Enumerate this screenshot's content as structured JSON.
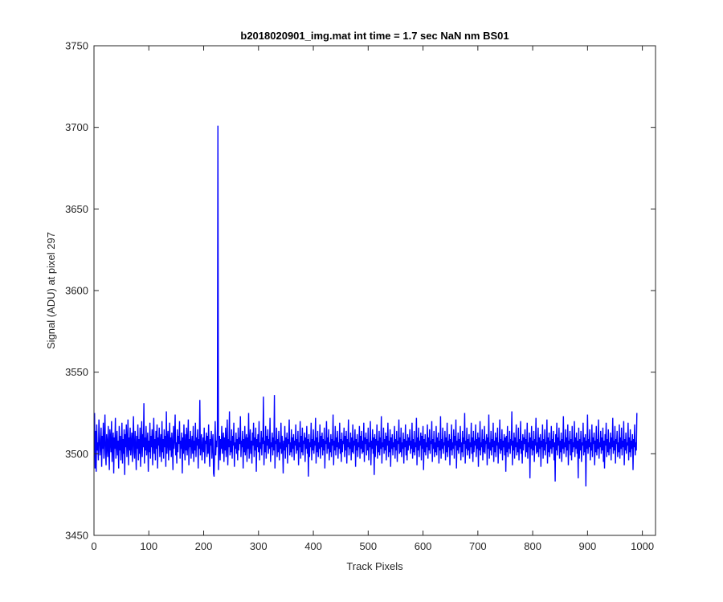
{
  "chart_data": {
    "type": "line",
    "title": "b2018020901_img.mat int time = 1.7 sec  NaN nm BS01",
    "xlabel": "Track Pixels",
    "ylabel": "Signal (ADU) at pixel 297",
    "xlim": [
      0,
      1024
    ],
    "ylim": [
      3450,
      3750
    ],
    "xticks": [
      0,
      100,
      200,
      300,
      400,
      500,
      600,
      700,
      800,
      900,
      1000
    ],
    "xtick_labels": [
      "0",
      "100",
      "200",
      "300",
      "400",
      "500",
      "600",
      "700",
      "800",
      "900",
      "1000"
    ],
    "yticks": [
      3450,
      3500,
      3550,
      3600,
      3650,
      3700,
      3750
    ],
    "ytick_labels": [
      "3450",
      "3500",
      "3550",
      "3600",
      "3650",
      "3700",
      "3750"
    ],
    "grid": false,
    "line_color": "#0000ff",
    "series": [
      {
        "x_start": 1,
        "x_step": 1,
        "values": [
          3525,
          3491,
          3514,
          3489,
          3518,
          3502,
          3507,
          3496,
          3521,
          3510,
          3499,
          3505,
          3516,
          3492,
          3511,
          3503,
          3519,
          3497,
          3508,
          3524,
          3500,
          3493,
          3512,
          3506,
          3498,
          3517,
          3504,
          3490,
          3515,
          3509,
          3501,
          3520,
          3495,
          3507,
          3513,
          3488,
          3510,
          3503,
          3522,
          3497,
          3506,
          3514,
          3499,
          3508,
          3491,
          3517,
          3502,
          3511,
          3496,
          3505,
          3519,
          3494,
          3509,
          3500,
          3515,
          3487,
          3512,
          3504,
          3518,
          3498,
          3507,
          3521,
          3493,
          3510,
          3502,
          3516,
          3499,
          3506,
          3513,
          3495,
          3508,
          3523,
          3501,
          3497,
          3514,
          3505,
          3490,
          3511,
          3503,
          3518,
          3496,
          3509,
          3500,
          3516,
          3492,
          3507,
          3520,
          3498,
          3512,
          3504,
          3531,
          3494,
          3510,
          3502,
          3517,
          3499,
          3506,
          3513,
          3489,
          3508,
          3501,
          3519,
          3497,
          3511,
          3504,
          3515,
          3493,
          3507,
          3522,
          3500,
          3509,
          3496,
          3514,
          3503,
          3518,
          3491,
          3510,
          3505,
          3516,
          3498,
          3507,
          3512,
          3495,
          3520,
          3501,
          3509,
          3497,
          3515,
          3504,
          3511,
          3492,
          3526,
          3500,
          3508,
          3514,
          3496,
          3506,
          3519,
          3502,
          3510,
          3498,
          3513,
          3505,
          3490,
          3517,
          3503,
          3509,
          3524,
          3499,
          3507,
          3494,
          3515,
          3501,
          3511,
          3506,
          3520,
          3497,
          3508,
          3503,
          3513,
          3488,
          3510,
          3500,
          3518,
          3505,
          3496,
          3512,
          3502,
          3516,
          3499,
          3507,
          3521,
          3493,
          3509,
          3504,
          3514,
          3497,
          3506,
          3511,
          3500,
          3517,
          3495,
          3508,
          3502,
          3519,
          3498,
          3510,
          3505,
          3515,
          3491,
          3509,
          3503,
          3533,
          3499,
          3507,
          3512,
          3496,
          3504,
          3510,
          3501,
          3516,
          3494,
          3508,
          3506,
          3513,
          3498,
          3511,
          3500,
          3518,
          3503,
          3492,
          3509,
          3505,
          3514,
          3497,
          3507,
          3512,
          3488,
          3486,
          3501,
          3520,
          3499,
          3508,
          3504,
          3515,
          3701,
          3490,
          3505,
          3511,
          3496,
          3509,
          3503,
          3517,
          3500,
          3507,
          3513,
          3495,
          3510,
          3502,
          3516,
          3498,
          3506,
          3521,
          3493,
          3509,
          3504,
          3526,
          3499,
          3508,
          3501,
          3515,
          3497,
          3511,
          3505,
          3519,
          3492,
          3507,
          3503,
          3513,
          3500,
          3509,
          3496,
          3516,
          3502,
          3510,
          3506,
          3523,
          3498,
          3508,
          3504,
          3514,
          3491,
          3509,
          3501,
          3517,
          3499,
          3507,
          3512,
          3495,
          3510,
          3503,
          3525,
          3497,
          3506,
          3515,
          3500,
          3508,
          3494,
          3513,
          3505,
          3519,
          3498,
          3510,
          3502,
          3516,
          3489,
          3509,
          3504,
          3512,
          3501,
          3520,
          3496,
          3507,
          3503,
          3514,
          3499,
          3510,
          3506,
          3535,
          3493,
          3508,
          3501,
          3517,
          3497,
          3511,
          3505,
          3515,
          3500,
          3509,
          3503,
          3522,
          3495,
          3507,
          3504,
          3513,
          3499,
          3510,
          3502,
          3536,
          3491,
          3508,
          3506,
          3516,
          3498,
          3509,
          3501,
          3514,
          3496,
          3507,
          3503,
          3519,
          3500,
          3511,
          3505,
          3488,
          3508,
          3502,
          3517,
          3497,
          3510,
          3504,
          3513,
          3494,
          3509,
          3506,
          3521,
          3499,
          3507,
          3501,
          3515,
          3498,
          3510,
          3503,
          3512,
          3496,
          3508,
          3505,
          3518,
          3500,
          3509,
          3502,
          3514,
          3493,
          3507,
          3504,
          3520,
          3497,
          3511,
          3501,
          3516,
          3499,
          3508,
          3506,
          3513,
          3495,
          3510,
          3503,
          3517,
          3500,
          3509,
          3486,
          3512,
          3498,
          3507,
          3504,
          3519,
          3496,
          3509,
          3502,
          3515,
          3500,
          3508,
          3505,
          3522,
          3494,
          3510,
          3501,
          3514,
          3498,
          3507,
          3503,
          3518,
          3497,
          3511,
          3504,
          3513,
          3499,
          3509,
          3502,
          3516,
          3491,
          3508,
          3506,
          3520,
          3500,
          3510,
          3503,
          3515,
          3496,
          3507,
          3501,
          3512,
          3498,
          3509,
          3505,
          3524,
          3493,
          3508,
          3502,
          3517,
          3499,
          3510,
          3504,
          3514,
          3497,
          3507,
          3503,
          3519,
          3500,
          3509,
          3495,
          3513,
          3501,
          3508,
          3506,
          3516,
          3498,
          3511,
          3502,
          3514,
          3494,
          3509,
          3504,
          3521,
          3499,
          3507,
          3503,
          3513,
          3496,
          3510,
          3501,
          3518,
          3500,
          3508,
          3505,
          3515,
          3492,
          3509,
          3502,
          3512,
          3498,
          3507,
          3504,
          3517,
          3497,
          3511,
          3503,
          3514,
          3500,
          3508,
          3501,
          3519,
          3495,
          3510,
          3506,
          3513,
          3499,
          3509,
          3502,
          3516,
          3496,
          3507,
          3504,
          3520,
          3493,
          3508,
          3503,
          3515,
          3500,
          3510,
          3487,
          3512,
          3498,
          3509,
          3505,
          3518,
          3497,
          3508,
          3501,
          3514,
          3499,
          3510,
          3503,
          3523,
          3494,
          3507,
          3504,
          3516,
          3500,
          3509,
          3502,
          3513,
          3496,
          3511,
          3505,
          3519,
          3498,
          3508,
          3501,
          3515,
          3492,
          3510,
          3503,
          3512,
          3499,
          3507,
          3504,
          3517,
          3497,
          3509,
          3502,
          3514,
          3495,
          3508,
          3506,
          3521,
          3500,
          3510,
          3501,
          3516,
          3498,
          3507,
          3503,
          3513,
          3494,
          3509,
          3504,
          3518,
          3499,
          3508,
          3496,
          3512,
          3502,
          3510,
          3505,
          3515,
          3500,
          3508,
          3503,
          3519,
          3497,
          3509,
          3501,
          3514,
          3499,
          3507,
          3504,
          3522,
          3493,
          3510,
          3502,
          3516,
          3498,
          3508,
          3505,
          3513,
          3496,
          3511,
          3503,
          3517,
          3490,
          3509,
          3501,
          3512,
          3499,
          3507,
          3504,
          3518,
          3497,
          3510,
          3502,
          3515,
          3500,
          3508,
          3506,
          3520,
          3495,
          3509,
          3503,
          3514,
          3498,
          3507,
          3501,
          3517,
          3499,
          3510,
          3504,
          3513,
          3494,
          3508,
          3502,
          3523,
          3497,
          3509,
          3503,
          3516,
          3500,
          3507,
          3505,
          3514,
          3496,
          3510,
          3501,
          3519,
          3498,
          3508,
          3504,
          3512,
          3493,
          3509,
          3502,
          3518,
          3499,
          3507,
          3503,
          3515,
          3497,
          3511,
          3505,
          3521,
          3491,
          3508,
          3502,
          3513,
          3500,
          3509,
          3504,
          3517,
          3496,
          3507,
          3501,
          3514,
          3498,
          3510,
          3506,
          3525,
          3494,
          3508,
          3503,
          3516,
          3499,
          3509,
          3502,
          3512,
          3497,
          3507,
          3504,
          3519,
          3500,
          3510,
          3495,
          3514,
          3501,
          3508,
          3505,
          3518,
          3498,
          3509,
          3503,
          3513,
          3492,
          3510,
          3502,
          3520,
          3499,
          3507,
          3504,
          3515,
          3496,
          3509,
          3501,
          3517,
          3500,
          3508,
          3506,
          3512,
          3493,
          3510,
          3503,
          3524,
          3497,
          3507,
          3502,
          3514,
          3499,
          3509,
          3504,
          3519,
          3495,
          3508,
          3501,
          3513,
          3498,
          3510,
          3505,
          3516,
          3494,
          3507,
          3503,
          3521,
          3500,
          3509,
          3502,
          3515,
          3496,
          3508,
          3504,
          3512,
          3499,
          3510,
          3489,
          3511,
          3501,
          3517,
          3498,
          3507,
          3503,
          3514,
          3500,
          3509,
          3505,
          3526,
          3493,
          3508,
          3502,
          3513,
          3497,
          3510,
          3504,
          3518,
          3499,
          3507,
          3501,
          3516,
          3496,
          3509,
          3503,
          3520,
          3500,
          3508,
          3494,
          3512,
          3502,
          3510,
          3506,
          3515,
          3498,
          3509,
          3501,
          3519,
          3497,
          3507,
          3504,
          3513,
          3485,
          3510,
          3503,
          3517,
          3499,
          3508,
          3502,
          3514,
          3495,
          3509,
          3505,
          3522,
          3500,
          3507,
          3501,
          3516,
          3498,
          3510,
          3503,
          3512,
          3492,
          3508,
          3504,
          3518,
          3497,
          3509,
          3502,
          3515,
          3499,
          3507,
          3506,
          3521,
          3494,
          3510,
          3501,
          3513,
          3498,
          3508,
          3503,
          3517,
          3500,
          3509,
          3504,
          3514,
          3496,
          3507,
          3483,
          3512,
          3502,
          3519,
          3499,
          3510,
          3505,
          3516,
          3497,
          3508,
          3501,
          3513,
          3495,
          3509,
          3503,
          3523,
          3500,
          3507,
          3504,
          3515,
          3498,
          3510,
          3502,
          3518,
          3493,
          3508,
          3506,
          3514,
          3499,
          3509,
          3496,
          3517,
          3501,
          3507,
          3504,
          3520,
          3498,
          3510,
          3503,
          3513,
          3500,
          3508,
          3485,
          3516,
          3497,
          3509,
          3502,
          3514,
          3495,
          3507,
          3505,
          3519,
          3499,
          3510,
          3501,
          3512,
          3480,
          3508,
          3503,
          3524,
          3500,
          3509,
          3504,
          3515,
          3496,
          3507,
          3502,
          3518,
          3498,
          3510,
          3506,
          3513,
          3493,
          3508,
          3501,
          3517,
          3499,
          3509,
          3503,
          3521,
          3497,
          3507,
          3504,
          3514,
          3500,
          3510,
          3502,
          3516,
          3495,
          3508,
          3491,
          3512,
          3505,
          3519,
          3498,
          3509,
          3501,
          3515,
          3499,
          3507,
          3503,
          3513,
          3496,
          3510,
          3504,
          3522,
          3500,
          3508,
          3502,
          3517,
          3494,
          3509,
          3506,
          3514,
          3498,
          3507,
          3501,
          3518,
          3497,
          3510,
          3503,
          3516,
          3499,
          3508,
          3504,
          3520,
          3493,
          3509,
          3502,
          3513,
          3500,
          3507,
          3505,
          3519,
          3496,
          3510,
          3501,
          3515,
          3498,
          3508,
          3503,
          3512,
          3490,
          3509,
          3504,
          3518,
          3499,
          3507,
          3502,
          3525
        ]
      }
    ]
  }
}
